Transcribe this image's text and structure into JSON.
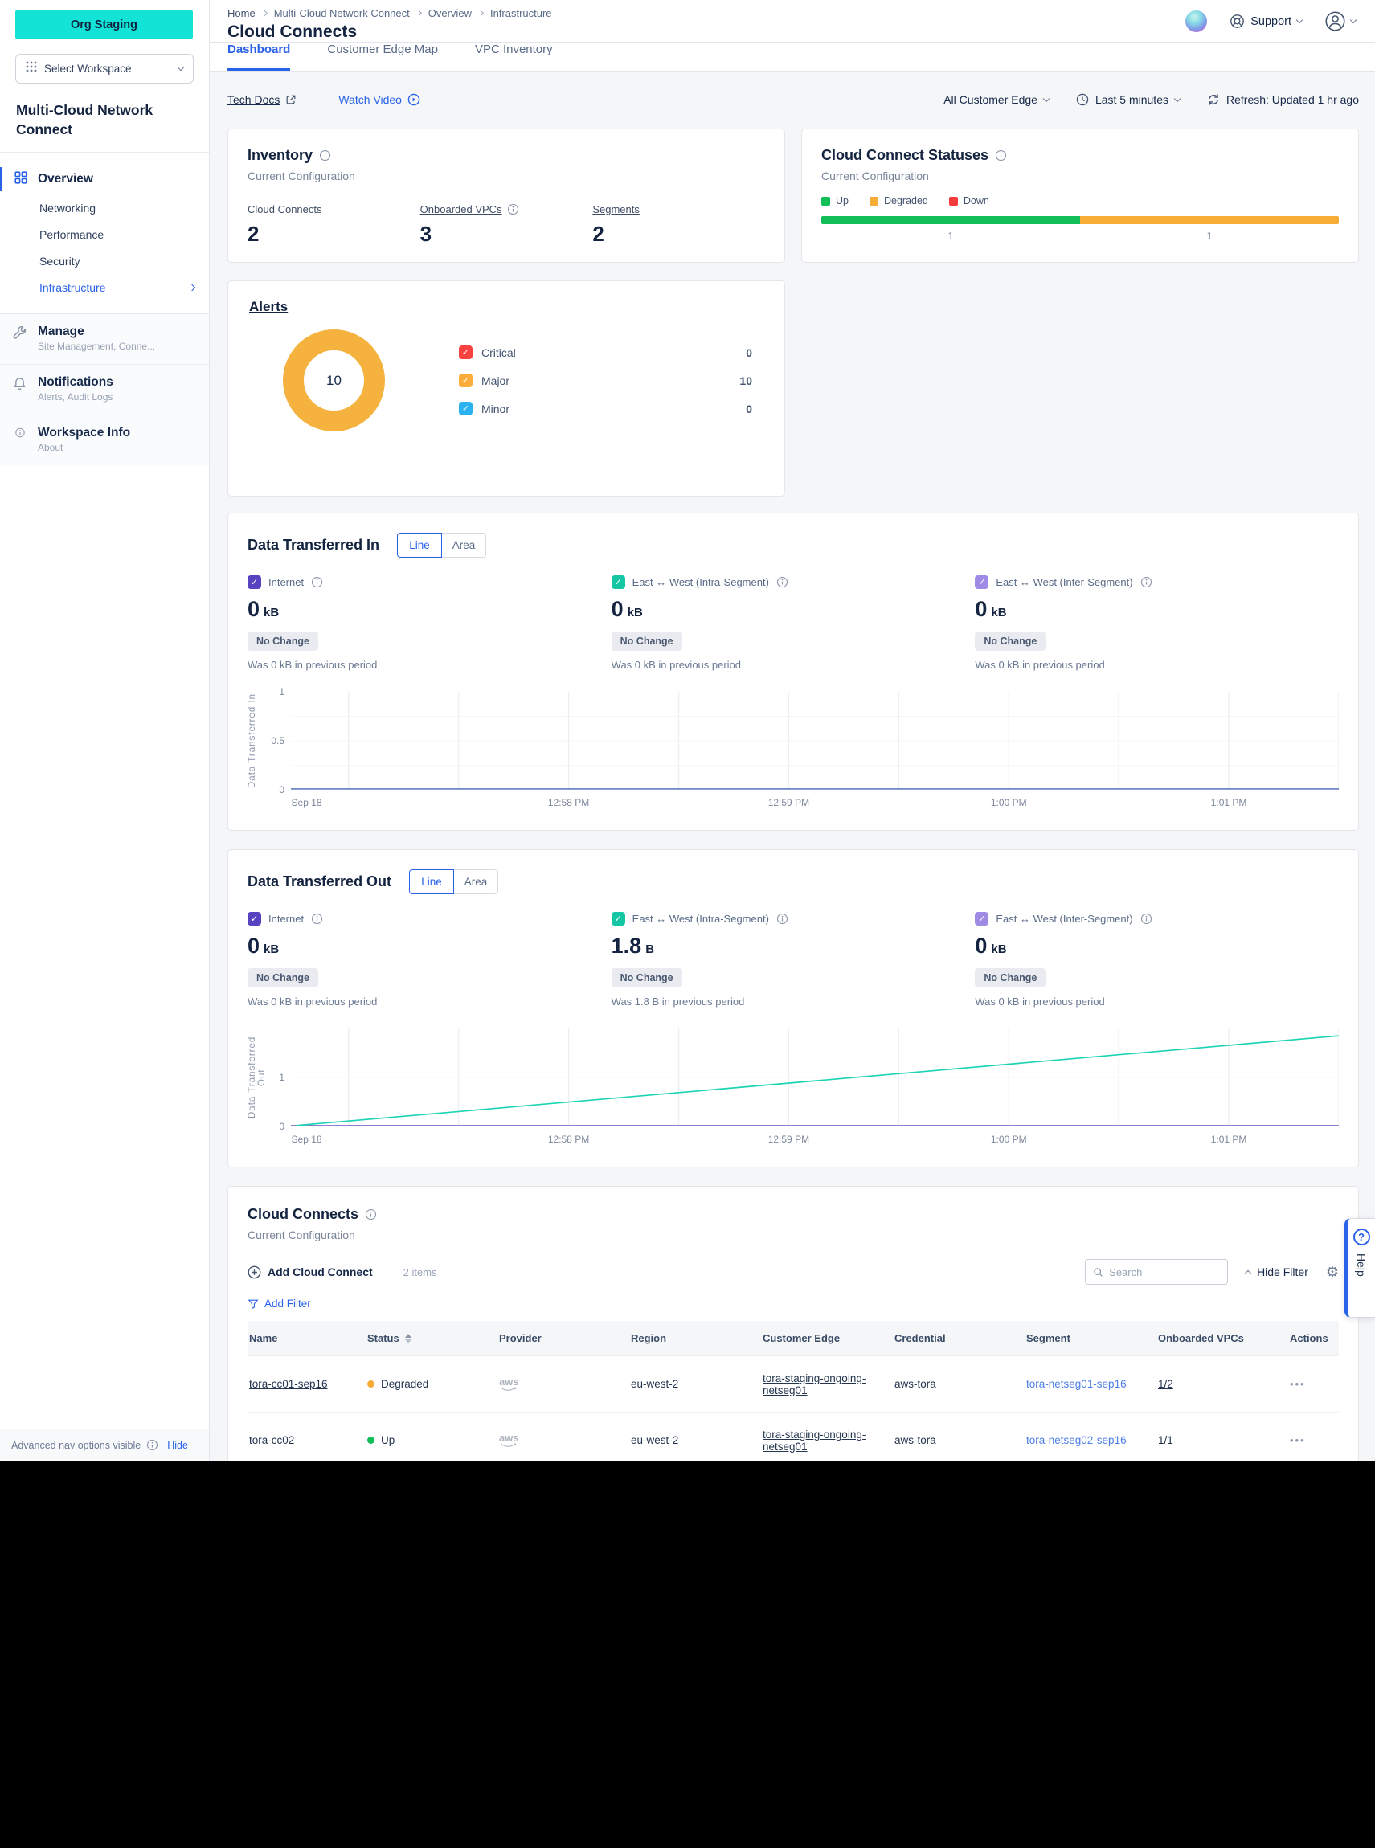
{
  "colors": {
    "accent": "#2962E9",
    "cyan": "#12E3D6",
    "donut": "#F5B23E",
    "link-blue": "#4C7EE8"
  },
  "org_button": "Org Staging",
  "workspace_selector": "Select Workspace",
  "topbar": {
    "support_label": "Support"
  },
  "breadcrumb": {
    "items": [
      "Home",
      "Multi-Cloud Network Connect",
      "Overview",
      "Infrastructure"
    ]
  },
  "page_title": "Cloud Connects",
  "tabs": {
    "dashboard": "Dashboard",
    "customer_edge_map": "Customer Edge Map",
    "vpc_inventory": "VPC Inventory"
  },
  "sidebar": {
    "title": "Multi-Cloud Network Connect",
    "overview": "Overview",
    "subitems": {
      "networking": "Networking",
      "performance": "Performance",
      "security": "Security",
      "infrastructure": "Infrastructure"
    },
    "sections": [
      {
        "label": "Manage",
        "sub": "Site Management, Conne..."
      },
      {
        "label": "Notifications",
        "sub": "Alerts, Audit Logs"
      },
      {
        "label": "Workspace Info",
        "sub": "About"
      }
    ],
    "footer": {
      "text": "Advanced nav options visible",
      "action": "Hide"
    }
  },
  "utility_bar": {
    "tech_docs": "Tech Docs",
    "watch_video": "Watch Video",
    "edge_filter": "All Customer Edge",
    "time_range": "Last 5 minutes",
    "refresh": "Refresh: Updated 1 hr ago"
  },
  "inventory": {
    "title": "Inventory",
    "subtitle": "Current Configuration",
    "stats": [
      {
        "label": "Cloud Connects",
        "value": "2"
      },
      {
        "label": "Onboarded VPCs",
        "value": "3"
      },
      {
        "label": "Segments",
        "value": "2"
      }
    ]
  },
  "statuses": {
    "title": "Cloud Connect Statuses",
    "subtitle": "Current Configuration",
    "legend": [
      {
        "label": "Up",
        "color": "#12BE57"
      },
      {
        "label": "Degraded",
        "color": "#F5AD36"
      },
      {
        "label": "Down",
        "color": "#F53B3B"
      }
    ]
  },
  "alerts": {
    "title": "Alerts",
    "total": "10",
    "legend": [
      {
        "label": "Critical",
        "value": "0",
        "color": "#F8423F"
      },
      {
        "label": "Major",
        "value": "10",
        "color": "#FBAD3B"
      },
      {
        "label": "Minor",
        "value": "0",
        "color": "#29B2EF"
      }
    ]
  },
  "data_in": {
    "title": "Data Transferred In",
    "toggle": {
      "line": "Line",
      "area": "Area"
    },
    "stats": [
      {
        "label": "Internet",
        "value": "0",
        "unit": "kB",
        "badge": "No Change",
        "note": "Was 0 kB in previous period",
        "checkbox_color": "#5742BF"
      },
      {
        "label": "East ↔ West (Intra-Segment)",
        "value": "0",
        "unit": "kB",
        "badge": "No Change",
        "note": "Was 0 kB in previous period",
        "checkbox_color": "#14C6A4"
      },
      {
        "label": "East ↔ West (Inter-Segment)",
        "value": "0",
        "unit": "kB",
        "badge": "No Change",
        "note": "Was 0 kB in previous period",
        "checkbox_color": "#9F8BE5"
      }
    ]
  },
  "data_out": {
    "title": "Data Transferred Out",
    "toggle": {
      "line": "Line",
      "area": "Area"
    },
    "stats": [
      {
        "label": "Internet",
        "value": "0",
        "unit": "kB",
        "badge": "No Change",
        "note": "Was 0 kB in previous period",
        "checkbox_color": "#5742BF"
      },
      {
        "label": "East ↔ West (Intra-Segment)",
        "value": "1.8",
        "unit": "B",
        "badge": "No Change",
        "note": "Was 1.8 B in previous period",
        "checkbox_color": "#14C6A4"
      },
      {
        "label": "East ↔ West (Inter-Segment)",
        "value": "0",
        "unit": "kB",
        "badge": "No Change",
        "note": "Was 0 kB in previous period",
        "checkbox_color": "#9F8BE5"
      }
    ]
  },
  "cloud_connects": {
    "title": "Cloud Connects",
    "subtitle": "Current Configuration",
    "add_button": "Add Cloud Connect",
    "items_count": "2 items",
    "search_placeholder": "Search",
    "hide_filter": "Hide Filter",
    "add_filter": "Add Filter",
    "columns": [
      "Name",
      "Status",
      "Provider",
      "Region",
      "Customer Edge",
      "Credential",
      "Segment",
      "Onboarded VPCs",
      "Actions"
    ],
    "rows": [
      {
        "name": "tora-cc01-sep16",
        "status": "Degraded",
        "status_color": "#F5AD36",
        "provider": "aws",
        "region": "eu-west-2",
        "customer_edge": "tora-staging-ongoing-netseg01",
        "credential": "aws-tora",
        "segment": "tora-netseg01-sep16",
        "onboarded_vpcs": "1/2"
      },
      {
        "name": "tora-cc02",
        "status": "Up",
        "status_color": "#12BE57",
        "provider": "aws",
        "region": "eu-west-2",
        "customer_edge": "tora-staging-ongoing-netseg01",
        "credential": "aws-tora",
        "segment": "tora-netseg02-sep16",
        "onboarded_vpcs": "1/1"
      }
    ]
  },
  "help_tab": "Help",
  "chart_data": [
    {
      "id": "data_in",
      "type": "line",
      "title": "Data Transferred In",
      "ylabel": "Data Transferred In",
      "ymax": 1,
      "ygrid": [
        0,
        0.25,
        0.5,
        0.75,
        1
      ],
      "yticks": [
        {
          "v": 0,
          "label": "0"
        },
        {
          "v": 0.5,
          "label": "0.5"
        },
        {
          "v": 1,
          "label": "1"
        }
      ],
      "xticks": [
        {
          "pos": 0.015,
          "label": "Sep 18"
        },
        {
          "pos": 0.265,
          "label": "12:58 PM"
        },
        {
          "pos": 0.475,
          "label": "12:59 PM"
        },
        {
          "pos": 0.685,
          "label": "1:00 PM"
        },
        {
          "pos": 0.895,
          "label": "1:01 PM"
        }
      ],
      "series": [
        {
          "name": "East ↔ West (Intra-Segment)",
          "color": "#1CD3B4",
          "points": [
            [
              0,
              0
            ],
            [
              1,
              0
            ]
          ]
        },
        {
          "name": "East ↔ West (Inter-Segment)",
          "color": "#9F8BE5",
          "points": [
            [
              0,
              0
            ],
            [
              1,
              0
            ]
          ]
        },
        {
          "name": "Internet",
          "color": "#7486C6",
          "points": [
            [
              0,
              0
            ],
            [
              1,
              0
            ]
          ]
        }
      ]
    },
    {
      "id": "data_out",
      "type": "line",
      "title": "Data Transferred Out",
      "ylabel": "Data Transferred Out",
      "ymax": 2,
      "ygrid": [
        0,
        0.5,
        1,
        1.5
      ],
      "yticks": [
        {
          "v": 0,
          "label": "0"
        },
        {
          "v": 1,
          "label": "1"
        }
      ],
      "xticks": [
        {
          "pos": 0.015,
          "label": "Sep 18"
        },
        {
          "pos": 0.265,
          "label": "12:58 PM"
        },
        {
          "pos": 0.475,
          "label": "12:59 PM"
        },
        {
          "pos": 0.685,
          "label": "1:00 PM"
        },
        {
          "pos": 0.895,
          "label": "1:01 PM"
        }
      ],
      "series": [
        {
          "name": "Internet",
          "color": "#7486C6",
          "points": [
            [
              0,
              0
            ],
            [
              1,
              0
            ]
          ]
        },
        {
          "name": "East ↔ West (Inter-Segment)",
          "color": "#8F7FD0",
          "points": [
            [
              0,
              0
            ],
            [
              1,
              0
            ]
          ]
        },
        {
          "name": "East ↔ West (Intra-Segment)",
          "color": "#1CD3B4",
          "points": [
            [
              0.005,
              0
            ],
            [
              1,
              1.85
            ]
          ]
        }
      ]
    },
    {
      "id": "alerts_donut",
      "type": "pie",
      "title": "Alerts",
      "labels": [
        "Critical",
        "Major",
        "Minor"
      ],
      "values": [
        0,
        10,
        0
      ],
      "total": 10,
      "colors": [
        "#F8423F",
        "#FBAD3B",
        "#29B2EF"
      ]
    },
    {
      "id": "cloud_connect_statuses",
      "type": "bar",
      "title": "Cloud Connect Statuses",
      "categories": [
        "Up",
        "Degraded",
        "Down"
      ],
      "values": [
        1,
        1,
        0
      ],
      "colors": [
        "#12BE57",
        "#F5AD36",
        "#F53B3B"
      ],
      "orientation": "horizontal-stacked"
    }
  ]
}
